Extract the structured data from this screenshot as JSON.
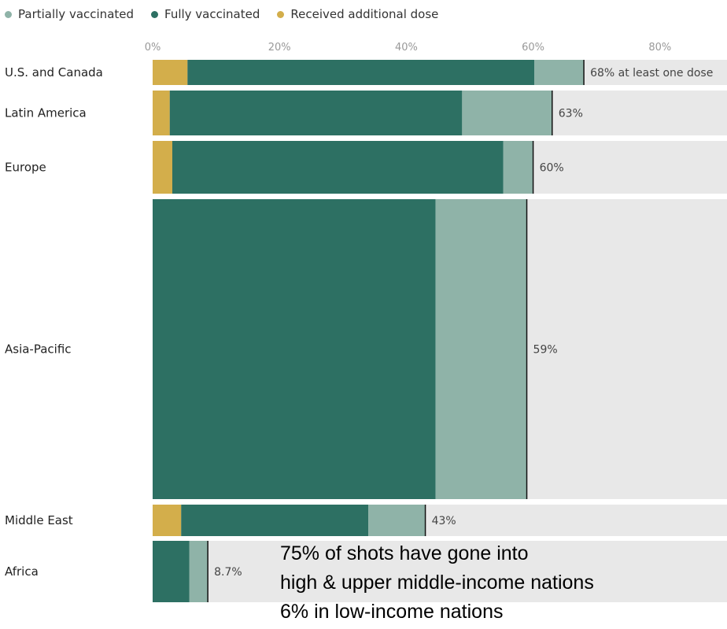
{
  "legend": [
    {
      "label": "Partially vaccinated",
      "color": "#8fb3a8"
    },
    {
      "label": "Fully vaccinated",
      "color": "#2d7063"
    },
    {
      "label": "Received additional dose",
      "color": "#d3ae4b"
    }
  ],
  "chart_data": {
    "type": "bar",
    "orientation": "horizontal",
    "stacked": true,
    "x_ticks": [
      "0%",
      "20%",
      "40%",
      "60%",
      "80%"
    ],
    "xlim": [
      0,
      100
    ],
    "categories": [
      "U.S. and Canada",
      "Latin America",
      "Europe",
      "Asia-Pacific",
      "Middle East",
      "Africa"
    ],
    "series": [
      {
        "name": "Received additional dose",
        "values": [
          5.5,
          2.7,
          3.1,
          0,
          4.5,
          0
        ]
      },
      {
        "name": "Fully vaccinated",
        "values": [
          54.7,
          46.1,
          52.2,
          44.6,
          29.5,
          5.8
        ]
      },
      {
        "name": "Partially vaccinated",
        "values": [
          7.8,
          14.2,
          4.7,
          14.4,
          9.0,
          2.9
        ]
      }
    ],
    "totals": [
      68,
      63,
      60,
      59,
      43,
      8.7
    ],
    "total_labels": [
      "68% at least one dose",
      "63%",
      "60%",
      "59%",
      "43%",
      "8.7%"
    ],
    "background_color": "#e8e8e8"
  },
  "overlay_text": [
    "75% of shots have gone into",
    "high & upper middle-income nations",
    "6% in low-income nations"
  ]
}
